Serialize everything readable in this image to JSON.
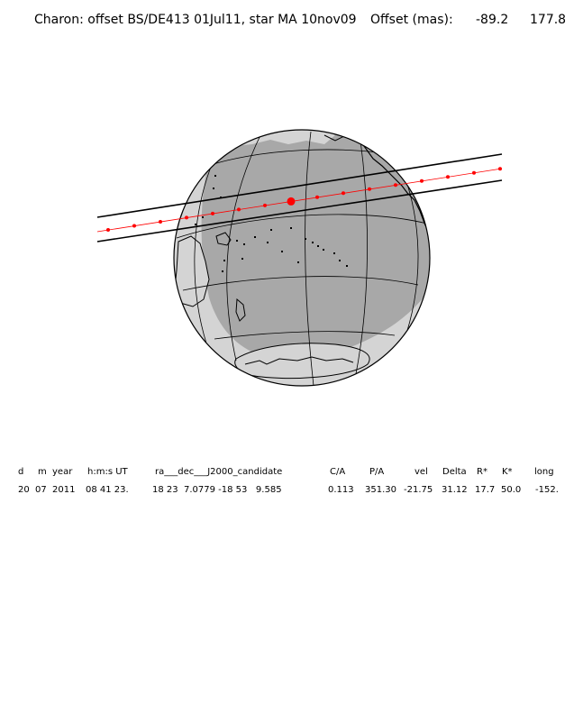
{
  "header": {
    "title": "Charon: offset BS/DE413 01Jul11, star MA 10nov09",
    "offset_label": "Offset (mas):",
    "offset_x": "-89.2",
    "offset_y": "177.8"
  },
  "table": {
    "headers": [
      "d",
      "m",
      "year",
      "h:m:s UT",
      "ra___dec___J2000_candidate",
      "C/A",
      "P/A",
      "vel",
      "Delta",
      "R*",
      "K*",
      "long"
    ],
    "values": [
      "20",
      "07",
      "2011",
      "08 41 23.",
      "18 23  7.0779 -18 53   9.585",
      "0.113",
      "351.30",
      "-21.75",
      "31.12",
      "17.7",
      "50.0",
      "-152."
    ]
  },
  "colors": {
    "night": "#a8a8a8",
    "day": "#d4d4d4",
    "track": "#ff0000",
    "lines": "#000000"
  },
  "diagram": {
    "track_dots": 16,
    "closest_approach_index": 7
  }
}
